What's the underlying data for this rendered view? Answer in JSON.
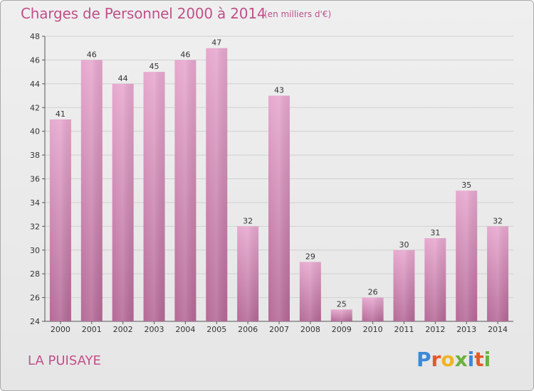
{
  "header": {
    "title": "Charges de Personnel 2000 à 2014",
    "subtitle": "(en milliers d'€)"
  },
  "footer": {
    "place": "LA PUISAYE",
    "logo_letters": [
      "P",
      "r",
      "o",
      "x",
      "i",
      "t",
      "i"
    ]
  },
  "colors": {
    "bar_top": "#e7a8cf",
    "bar_bottom": "#b56a97",
    "title": "#c0508a",
    "grid": "#d0d0d0"
  },
  "chart_data": {
    "type": "bar",
    "title": "Charges de Personnel 2000 à 2014",
    "subtitle": "(en milliers d'€)",
    "categories": [
      "2000",
      "2001",
      "2002",
      "2003",
      "2004",
      "2005",
      "2006",
      "2007",
      "2008",
      "2009",
      "2010",
      "2011",
      "2012",
      "2013",
      "2014"
    ],
    "values": [
      41,
      46,
      44,
      45,
      46,
      47,
      32,
      43,
      29,
      25,
      26,
      30,
      31,
      35,
      32
    ],
    "ylim": [
      24,
      48
    ],
    "yticks": [
      24,
      26,
      28,
      30,
      32,
      34,
      36,
      38,
      40,
      42,
      44,
      46,
      48
    ],
    "grid": true
  }
}
